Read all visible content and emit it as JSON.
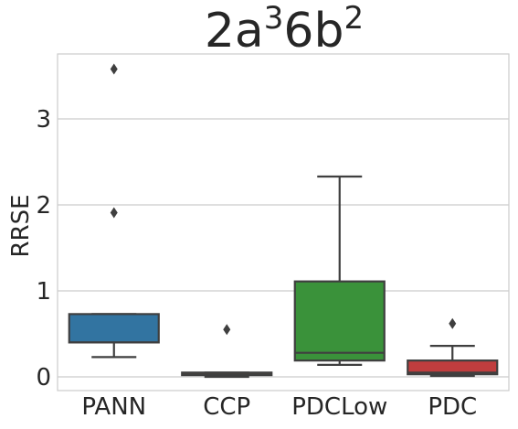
{
  "chart_data": {
    "type": "box",
    "title": {
      "base": "2a",
      "sup1": "3",
      "mid": "6b",
      "sup2": "2"
    },
    "xlabel": "",
    "ylabel": "RRSE",
    "ylim": [
      -0.17,
      3.75
    ],
    "yticks": [
      "0",
      "1",
      "2",
      "3"
    ],
    "grid": "horizontal",
    "categories": [
      "PANN",
      "CCP",
      "PDCLow",
      "PDC"
    ],
    "series": [
      {
        "category": "PANN",
        "color": "#3274a1",
        "whisker_low": 0.23,
        "q1": 0.4,
        "median": 0.4,
        "q3": 0.73,
        "whisker_high": 0.73,
        "outliers": [
          1.91,
          3.58
        ]
      },
      {
        "category": "CCP",
        "color": "#e1812c",
        "whisker_low": 0.0,
        "q1": 0.02,
        "median": 0.03,
        "q3": 0.05,
        "whisker_high": 0.05,
        "outliers": [
          0.55
        ]
      },
      {
        "category": "PDCLow",
        "color": "#3a923a",
        "whisker_low": 0.14,
        "q1": 0.19,
        "median": 0.28,
        "q3": 1.11,
        "whisker_high": 2.33,
        "outliers": []
      },
      {
        "category": "PDC",
        "color": "#c03d3e",
        "whisker_low": 0.01,
        "q1": 0.03,
        "median": 0.05,
        "q3": 0.19,
        "whisker_high": 0.36,
        "outliers": [
          0.62
        ]
      }
    ]
  }
}
